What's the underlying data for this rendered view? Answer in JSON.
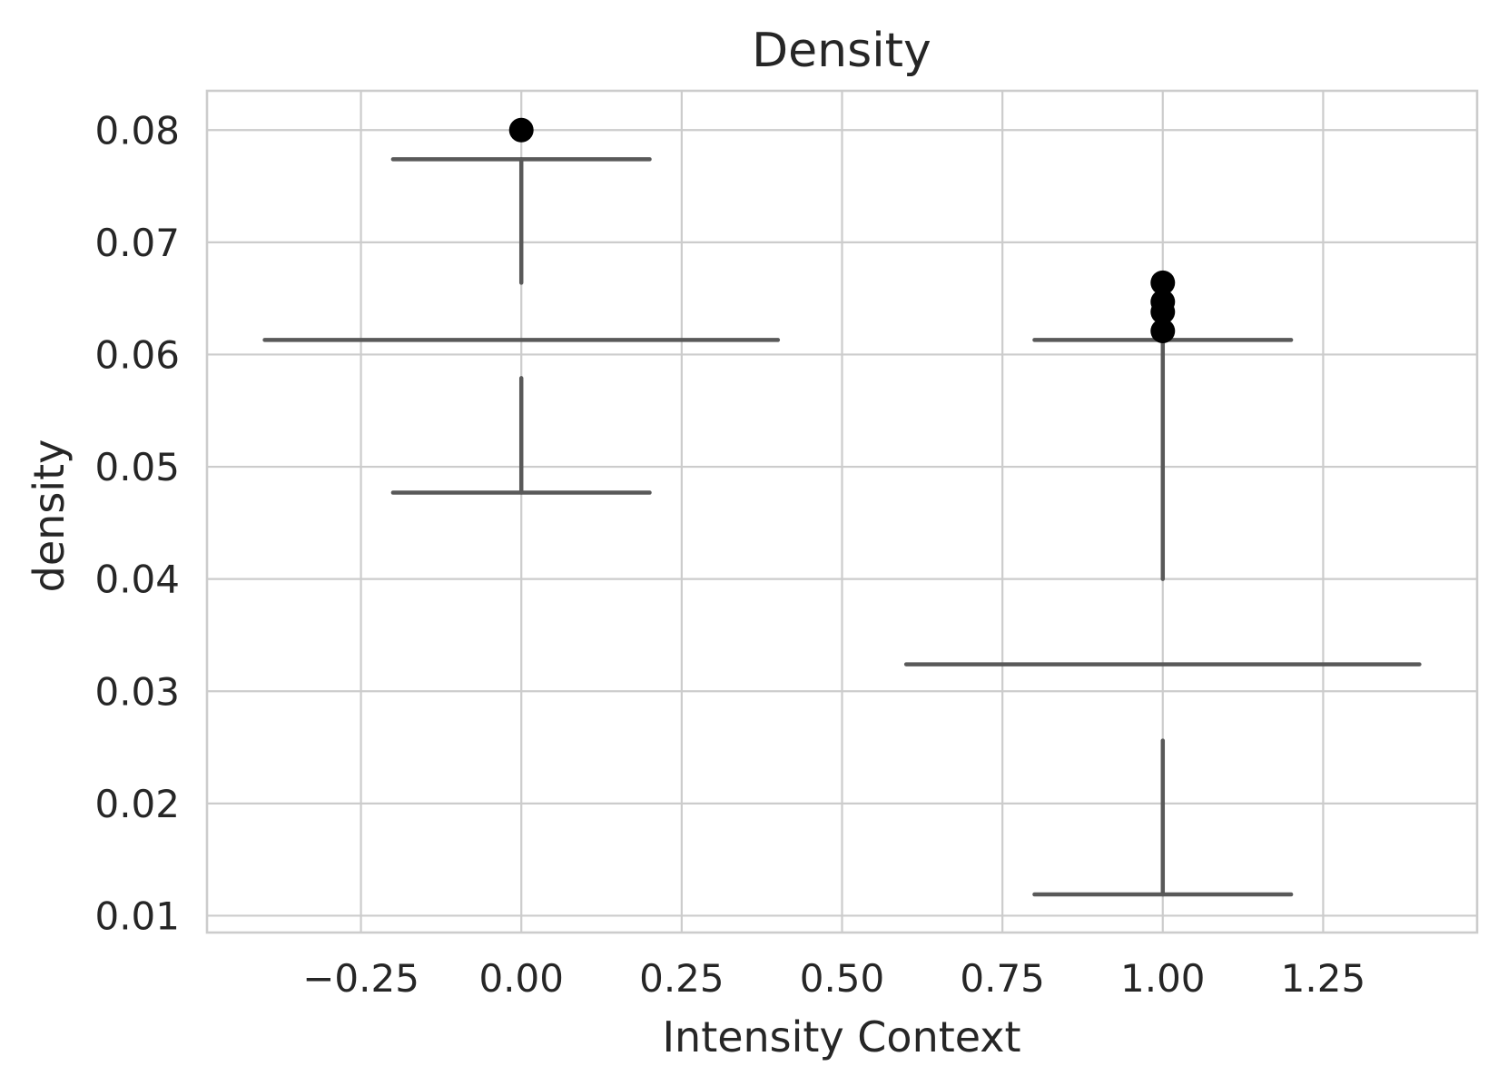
{
  "chart_data": {
    "type": "box",
    "title": "Density",
    "xlabel": "Intensity Context",
    "ylabel": "density",
    "xlim": [
      -0.49,
      1.49
    ],
    "ylim": [
      0.0085,
      0.0835
    ],
    "xticks": [
      -0.25,
      0.0,
      0.25,
      0.5,
      0.75,
      1.0,
      1.25
    ],
    "xtick_labels": [
      "−0.25",
      "0.00",
      "0.25",
      "0.50",
      "0.75",
      "1.00",
      "1.25"
    ],
    "yticks": [
      0.01,
      0.02,
      0.03,
      0.04,
      0.05,
      0.06,
      0.07,
      0.08
    ],
    "ytick_labels": [
      "0.01",
      "0.02",
      "0.03",
      "0.04",
      "0.05",
      "0.06",
      "0.07",
      "0.08"
    ],
    "grid": true,
    "colors": {
      "box_line": "#595959",
      "flier": "#000000",
      "grid": "#cccccc",
      "text": "#262626"
    },
    "boxes": [
      {
        "position": 0.0,
        "whisker_low": 0.0477,
        "q1": 0.0579,
        "median": 0.0613,
        "q3": 0.0664,
        "whisker_high": 0.0774,
        "fliers": [
          0.08
        ],
        "median_halfwidth": 0.4,
        "cap_halfwidth": 0.2
      },
      {
        "position": 1.0,
        "whisker_low": 0.0119,
        "q1": 0.0256,
        "median": 0.0324,
        "q3": 0.04,
        "whisker_high": 0.0613,
        "fliers": [
          0.0621,
          0.0638,
          0.0647,
          0.0664
        ],
        "median_halfwidth": 0.4,
        "cap_halfwidth": 0.2
      }
    ]
  }
}
